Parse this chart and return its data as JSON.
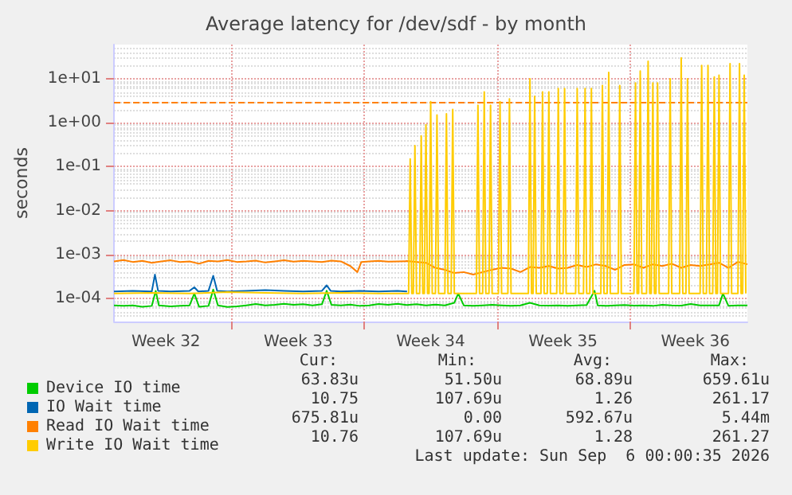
{
  "chart_data": {
    "type": "line",
    "title": "Average latency for /dev/sdf - by month",
    "ylabel": "seconds",
    "log": "y",
    "grid": true,
    "legend": "bottom left",
    "marker": "none",
    "line_style": "solid",
    "xlim": [
      "2026-08-03T18:00",
      "2026-09-06T06:00"
    ],
    "xticks": [
      {
        "value": "2026-08-06T12:00",
        "label": "Week 32"
      },
      {
        "value": "2026-08-10T00:00",
        "label": null
      },
      {
        "value": "2026-08-13T12:00",
        "label": "Week 33"
      },
      {
        "value": "2026-08-17T00:00",
        "label": null
      },
      {
        "value": "2026-08-20T12:00",
        "label": "Week 34"
      },
      {
        "value": "2026-08-24T00:00",
        "label": null
      },
      {
        "value": "2026-08-27T12:00",
        "label": "Week 35"
      },
      {
        "value": "2026-08-31T00:00",
        "label": null
      },
      {
        "value": "2026-09-03T12:00",
        "label": "Week 36"
      }
    ],
    "ylim": [
      3e-05,
      60
    ],
    "yticks": [
      {
        "value": 0.0001,
        "label": "1e-04"
      },
      {
        "value": 0.001,
        "label": "1e-03"
      },
      {
        "value": 0.01,
        "label": "1e-02"
      },
      {
        "value": 0.1,
        "label": "1e-01"
      },
      {
        "value": 1,
        "label": "1e+00"
      },
      {
        "value": 10,
        "label": "1e+01"
      }
    ],
    "ref_lines": [
      {
        "axis": "y",
        "value": 3,
        "color": "#ff8000",
        "line_style": "dashed"
      }
    ],
    "series": [
      {
        "name": "Device IO time",
        "color": "#00cc00",
        "x": [
          "2026-08-03T18:00",
          "2026-08-04T06:00",
          "2026-08-04T18:00",
          "2026-08-05T06:00",
          "2026-08-05T18:00",
          "2026-08-05T23:00",
          "2026-08-06T03:00",
          "2026-08-06T18:00",
          "2026-08-07T06:00",
          "2026-08-07T18:00",
          "2026-08-08T00:00",
          "2026-08-08T06:00",
          "2026-08-08T18:00",
          "2026-08-09T00:00",
          "2026-08-09T06:00",
          "2026-08-09T18:00",
          "2026-08-10T06:00",
          "2026-08-10T18:00",
          "2026-08-11T06:00",
          "2026-08-11T18:00",
          "2026-08-12T06:00",
          "2026-08-12T18:00",
          "2026-08-13T06:00",
          "2026-08-13T18:00",
          "2026-08-14T06:00",
          "2026-08-14T18:00",
          "2026-08-15T00:00",
          "2026-08-15T06:00",
          "2026-08-15T18:00",
          "2026-08-16T06:00",
          "2026-08-16T18:00",
          "2026-08-17T06:00",
          "2026-08-17T18:00",
          "2026-08-18T06:00",
          "2026-08-18T18:00",
          "2026-08-19T06:00",
          "2026-08-19T18:00",
          "2026-08-20T06:00",
          "2026-08-20T18:00",
          "2026-08-21T06:00",
          "2026-08-21T18:00",
          "2026-08-21T23:00",
          "2026-08-22T06:00",
          "2026-08-22T18:00",
          "2026-08-23T06:00",
          "2026-08-23T18:00",
          "2026-08-24T06:00",
          "2026-08-24T18:00",
          "2026-08-25T06:00",
          "2026-08-25T18:00",
          "2026-08-26T06:00",
          "2026-08-26T18:00",
          "2026-08-27T06:00",
          "2026-08-27T18:00",
          "2026-08-28T06:00",
          "2026-08-28T18:00",
          "2026-08-29T04:00",
          "2026-08-29T08:00",
          "2026-08-29T18:00",
          "2026-08-30T06:00",
          "2026-08-30T18:00",
          "2026-08-31T06:00",
          "2026-08-31T18:00",
          "2026-09-01T06:00",
          "2026-09-01T18:00",
          "2026-09-02T06:00",
          "2026-09-02T18:00",
          "2026-09-03T06:00",
          "2026-09-03T18:00",
          "2026-09-04T06:00",
          "2026-09-04T18:00",
          "2026-09-04T23:00",
          "2026-09-05T06:00",
          "2026-09-05T18:00",
          "2026-09-06T06:00"
        ],
        "values": [
          7e-05,
          6.8e-05,
          7e-05,
          6.5e-05,
          6.8e-05,
          0.00015,
          7e-05,
          6.6e-05,
          6.8e-05,
          7e-05,
          0.00013,
          6.5e-05,
          6.8e-05,
          0.00016,
          7e-05,
          6.4e-05,
          6.6e-05,
          7e-05,
          7.5e-05,
          7e-05,
          7.2e-05,
          7.6e-05,
          7.2e-05,
          7.4e-05,
          7e-05,
          7.4e-05,
          0.00015,
          7.2e-05,
          7e-05,
          7.3e-05,
          6.8e-05,
          7e-05,
          7.5e-05,
          7.2e-05,
          7.6e-05,
          7.1e-05,
          7.4e-05,
          7e-05,
          7.3e-05,
          7e-05,
          8e-05,
          0.00013,
          7e-05,
          6.8e-05,
          7e-05,
          7.2e-05,
          7e-05,
          6.8e-05,
          7e-05,
          8e-05,
          7e-05,
          6.9e-05,
          7e-05,
          6.8e-05,
          7e-05,
          7.1e-05,
          0.00015,
          7e-05,
          6.8e-05,
          7e-05,
          7.1e-05,
          6.9e-05,
          7e-05,
          6.8e-05,
          7.2e-05,
          7e-05,
          6.9e-05,
          7.5e-05,
          7e-05,
          7e-05,
          7e-05,
          0.00013,
          6.8e-05,
          7e-05,
          7e-05
        ]
      },
      {
        "name": "IO Wait time",
        "color": "#0066b3",
        "x": [
          "2026-08-03T18:00",
          "2026-08-04T18:00",
          "2026-08-05T18:00",
          "2026-08-05T22:00",
          "2026-08-06T02:00",
          "2026-08-06T18:00",
          "2026-08-07T18:00",
          "2026-08-08T00:00",
          "2026-08-08T05:00",
          "2026-08-08T18:00",
          "2026-08-09T00:00",
          "2026-08-09T05:00",
          "2026-08-09T18:00",
          "2026-08-10T18:00",
          "2026-08-11T18:00",
          "2026-08-12T18:00",
          "2026-08-13T18:00",
          "2026-08-14T18:00",
          "2026-08-15T00:00",
          "2026-08-15T05:00",
          "2026-08-15T18:00",
          "2026-08-16T18:00",
          "2026-08-17T18:00",
          "2026-08-18T18:00",
          "2026-08-19T06:00"
        ],
        "values": [
          0.000145,
          0.00015,
          0.000145,
          0.00035,
          0.00015,
          0.000145,
          0.00015,
          0.00018,
          0.000145,
          0.00015,
          0.00033,
          0.00015,
          0.000145,
          0.00015,
          0.000155,
          0.00015,
          0.000145,
          0.00015,
          0.0002,
          0.00015,
          0.000145,
          0.00015,
          0.000145,
          0.00015,
          0.000145
        ]
      },
      {
        "name": "Read IO Wait time",
        "color": "#ff8000",
        "x": [
          "2026-08-03T18:00",
          "2026-08-04T06:00",
          "2026-08-04T18:00",
          "2026-08-05T06:00",
          "2026-08-05T18:00",
          "2026-08-06T06:00",
          "2026-08-06T18:00",
          "2026-08-07T06:00",
          "2026-08-07T18:00",
          "2026-08-08T06:00",
          "2026-08-08T18:00",
          "2026-08-09T06:00",
          "2026-08-09T18:00",
          "2026-08-10T06:00",
          "2026-08-10T18:00",
          "2026-08-11T06:00",
          "2026-08-11T18:00",
          "2026-08-12T06:00",
          "2026-08-12T18:00",
          "2026-08-13T06:00",
          "2026-08-13T18:00",
          "2026-08-14T06:00",
          "2026-08-14T18:00",
          "2026-08-15T06:00",
          "2026-08-15T18:00",
          "2026-08-16T06:00",
          "2026-08-16T15:00",
          "2026-08-16T20:00",
          "2026-08-17T06:00",
          "2026-08-17T18:00",
          "2026-08-18T06:00",
          "2026-08-18T18:00",
          "2026-08-19T06:00",
          "2026-08-19T18:00",
          "2026-08-20T06:00",
          "2026-08-20T18:00",
          "2026-08-21T06:00",
          "2026-08-21T18:00",
          "2026-08-22T06:00",
          "2026-08-22T18:00",
          "2026-08-23T06:00",
          "2026-08-23T18:00",
          "2026-08-24T06:00",
          "2026-08-24T18:00",
          "2026-08-25T06:00",
          "2026-08-25T18:00",
          "2026-08-26T06:00",
          "2026-08-26T18:00",
          "2026-08-27T06:00",
          "2026-08-27T18:00",
          "2026-08-28T06:00",
          "2026-08-28T18:00",
          "2026-08-29T06:00",
          "2026-08-29T18:00",
          "2026-08-30T06:00",
          "2026-08-30T18:00",
          "2026-08-31T06:00",
          "2026-08-31T18:00",
          "2026-09-01T06:00",
          "2026-09-01T18:00",
          "2026-09-02T06:00",
          "2026-09-02T18:00",
          "2026-09-03T06:00",
          "2026-09-03T18:00",
          "2026-09-04T06:00",
          "2026-09-04T18:00",
          "2026-09-05T06:00",
          "2026-09-05T18:00",
          "2026-09-06T06:00"
        ],
        "values": [
          0.0007,
          0.00075,
          0.00068,
          0.00072,
          0.00065,
          0.0007,
          0.00074,
          0.00068,
          0.0007,
          0.00062,
          0.00072,
          0.0007,
          0.00075,
          0.00068,
          0.0007,
          0.00073,
          0.00066,
          0.0007,
          0.00074,
          0.00069,
          0.00072,
          0.0007,
          0.00068,
          0.00073,
          0.0007,
          0.00055,
          0.0004,
          0.00068,
          0.0007,
          0.00072,
          0.00069,
          0.0007,
          0.00071,
          0.00068,
          0.00065,
          0.0005,
          0.00045,
          0.00038,
          0.0004,
          0.00035,
          0.0004,
          0.00045,
          0.0005,
          0.00048,
          0.0004,
          0.00052,
          0.0005,
          0.00055,
          0.00048,
          0.0005,
          0.00058,
          0.00052,
          0.0006,
          0.00055,
          0.00045,
          0.00058,
          0.0006,
          0.0005,
          0.0006,
          0.00055,
          0.00062,
          0.0005,
          0.00058,
          0.00055,
          0.0006,
          0.00065,
          0.0005,
          0.00068,
          0.0006
        ]
      },
      {
        "name": "Write IO Wait time",
        "color": "#ffcc00",
        "x": [
          "2026-08-03T18:00",
          "2026-08-05T18:00",
          "2026-08-07T18:00",
          "2026-08-09T18:00",
          "2026-08-11T18:00",
          "2026-08-13T18:00",
          "2026-08-15T18:00",
          "2026-08-17T18:00",
          "2026-08-19T08:00",
          "2026-08-19T10:00",
          "2026-08-19T12:00",
          "2026-08-19T14:00",
          "2026-08-19T16:00",
          "2026-08-19T18:00",
          "2026-08-19T22:00",
          "2026-08-20T00:00",
          "2026-08-20T02:00",
          "2026-08-20T04:00",
          "2026-08-20T06:00",
          "2026-08-20T08:00",
          "2026-08-20T10:00",
          "2026-08-20T12:00",
          "2026-08-20T14:00",
          "2026-08-20T18:00",
          "2026-08-20T20:00",
          "2026-08-20T22:00",
          "2026-08-21T06:00",
          "2026-08-21T08:00",
          "2026-08-21T10:00",
          "2026-08-21T14:00",
          "2026-08-21T16:00",
          "2026-08-21T18:00",
          "2026-08-22T22:00",
          "2026-08-23T00:00",
          "2026-08-23T02:00",
          "2026-08-23T06:00",
          "2026-08-23T08:00",
          "2026-08-23T10:00",
          "2026-08-23T14:00",
          "2026-08-23T16:00",
          "2026-08-23T18:00",
          "2026-08-24T02:00",
          "2026-08-24T04:00",
          "2026-08-24T06:00",
          "2026-08-24T14:00",
          "2026-08-24T16:00",
          "2026-08-24T18:00",
          "2026-08-25T16:00",
          "2026-08-25T18:00",
          "2026-08-25T20:00",
          "2026-08-25T22:00",
          "2026-08-26T00:00",
          "2026-08-26T02:00",
          "2026-08-26T08:00",
          "2026-08-26T10:00",
          "2026-08-26T12:00",
          "2026-08-26T16:00",
          "2026-08-26T18:00",
          "2026-08-26T20:00",
          "2026-08-27T04:00",
          "2026-08-27T06:00",
          "2026-08-27T08:00",
          "2026-08-27T12:00",
          "2026-08-27T14:00",
          "2026-08-27T16:00",
          "2026-08-28T04:00",
          "2026-08-28T06:00",
          "2026-08-28T08:00",
          "2026-08-28T14:00",
          "2026-08-28T16:00",
          "2026-08-28T18:00",
          "2026-08-28T22:00",
          "2026-08-29T00:00",
          "2026-08-29T02:00",
          "2026-08-29T12:00",
          "2026-08-29T14:00",
          "2026-08-29T16:00",
          "2026-08-29T20:00",
          "2026-08-29T22:00",
          "2026-08-30T00:00",
          "2026-08-30T10:00",
          "2026-08-30T12:00",
          "2026-08-30T14:00",
          "2026-08-31T06:00",
          "2026-08-31T08:00",
          "2026-08-31T10:00",
          "2026-08-31T12:00",
          "2026-08-31T14:00",
          "2026-08-31T16:00",
          "2026-08-31T22:00",
          "2026-09-01T00:00",
          "2026-09-01T02:00",
          "2026-09-01T04:00",
          "2026-09-01T06:00",
          "2026-09-01T08:00",
          "2026-09-01T10:00",
          "2026-09-01T12:00",
          "2026-09-01T14:00",
          "2026-09-02T02:00",
          "2026-09-02T04:00",
          "2026-09-02T06:00",
          "2026-09-02T16:00",
          "2026-09-02T18:00",
          "2026-09-02T20:00",
          "2026-09-03T00:00",
          "2026-09-03T02:00",
          "2026-09-03T04:00",
          "2026-09-03T18:00",
          "2026-09-03T20:00",
          "2026-09-03T22:00",
          "2026-09-04T02:00",
          "2026-09-04T04:00",
          "2026-09-04T06:00",
          "2026-09-04T10:00",
          "2026-09-04T12:00",
          "2026-09-04T14:00",
          "2026-09-04T16:00",
          "2026-09-04T18:00",
          "2026-09-04T20:00",
          "2026-09-05T06:00",
          "2026-09-05T08:00",
          "2026-09-05T10:00",
          "2026-09-05T18:00",
          "2026-09-05T20:00",
          "2026-09-05T22:00",
          "2026-09-06T00:00",
          "2026-09-06T02:00",
          "2026-09-06T04:00"
        ],
        "values": [
          0.00013,
          0.000135,
          0.00013,
          0.00014,
          0.000135,
          0.00013,
          0.000135,
          0.00013,
          0.00013,
          0.15,
          0.00013,
          0.00013,
          0.3,
          0.00013,
          0.00013,
          0.5,
          0.00013,
          0.00013,
          0.9,
          0.00013,
          0.00013,
          3,
          0.00013,
          0.00013,
          1.5,
          0.00013,
          0.00013,
          1.6,
          0.00013,
          0.00013,
          2,
          0.00013,
          0.00013,
          2.5,
          0.00013,
          0.00013,
          5,
          0.00013,
          0.00013,
          2.5,
          0.00013,
          0.00013,
          3,
          0.00013,
          0.00013,
          3.5,
          0.00013,
          0.00013,
          10,
          0.00013,
          0.00013,
          4,
          0.00013,
          0.00013,
          5,
          0.00013,
          0.00013,
          5,
          0.00013,
          0.00013,
          6,
          0.00013,
          0.00013,
          6,
          0.00013,
          0.00013,
          6,
          0.00013,
          0.00013,
          6,
          0.00013,
          0.00013,
          6,
          0.00013,
          0.00013,
          7,
          0.00013,
          0.00013,
          14,
          0.00013,
          0.00013,
          7,
          0.00013,
          0.00013,
          8,
          0.00013,
          0.00013,
          15,
          0.00013,
          0.00013,
          25,
          0.00013,
          0.00013,
          8,
          0.00013,
          0.00013,
          8,
          0.00013,
          0.00013,
          10,
          0.00013,
          0.00013,
          30,
          0.00013,
          0.00013,
          10,
          0.00013,
          0.00013,
          20,
          0.00013,
          0.00013,
          20,
          0.00013,
          0.00013,
          11,
          0.00013,
          0.00013,
          12,
          0.00013,
          0.00013,
          22,
          0.00013,
          0.00013,
          22,
          0.00013,
          0.00013,
          12,
          0.00013
        ]
      }
    ],
    "annotations": [
      "Cur:",
      "Min:",
      "Avg:",
      "Max:",
      "63.83u",
      "51.50u",
      "68.89u",
      "659.61u",
      "10.75",
      "107.69u",
      "1.26",
      "261.17",
      "675.81u",
      "0.00",
      "592.67u",
      "5.44m",
      "10.76",
      "107.69u",
      "1.28",
      "261.27",
      "Last update: Sun Sep  6 00:00:35 2026"
    ]
  }
}
